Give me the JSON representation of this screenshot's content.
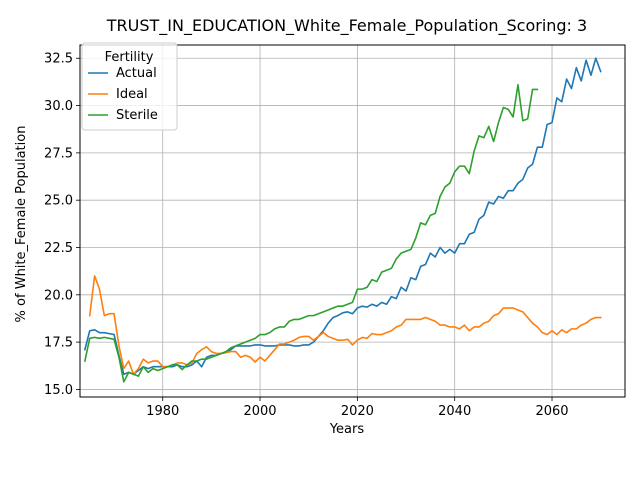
{
  "chart_data": {
    "type": "line",
    "title": "TRUST_IN_EDUCATION_White_Female_Population_Scoring: 3",
    "xlabel": "Years",
    "ylabel": "% of White_Female Population",
    "xlim": [
      1963,
      2075
    ],
    "ylim": [
      14.6,
      33.2
    ],
    "xticks": [
      1960,
      1980,
      2000,
      2020,
      2040,
      2060
    ],
    "yticks": [
      15.0,
      17.5,
      20.0,
      22.5,
      25.0,
      27.5,
      30.0,
      32.5
    ],
    "xtick_labels": [
      "1960",
      "1980",
      "2000",
      "2020",
      "2040",
      "2060"
    ],
    "ytick_labels": [
      "15.0",
      "17.5",
      "20.0",
      "22.5",
      "25.0",
      "27.5",
      "30.0",
      "32.5"
    ],
    "grid": true,
    "legend": {
      "title": "Fertility",
      "position": "top-left"
    },
    "series": [
      {
        "name": "Actual",
        "color": "#1f77b4",
        "x": [
          1964,
          1965,
          1966,
          1967,
          1968,
          1969,
          1970,
          1971,
          1972,
          1973,
          1974,
          1975,
          1976,
          1977,
          1978,
          1979,
          1980,
          1981,
          1982,
          1983,
          1984,
          1985,
          1986,
          1987,
          1988,
          1989,
          1990,
          1991,
          1992,
          1993,
          1994,
          1995,
          1996,
          1997,
          1998,
          1999,
          2000,
          2001,
          2002,
          2003,
          2004,
          2005,
          2006,
          2007,
          2008,
          2009,
          2010,
          2011,
          2012,
          2013,
          2014,
          2015,
          2016,
          2017,
          2018,
          2019,
          2020,
          2021,
          2022,
          2023,
          2024,
          2025,
          2026,
          2027,
          2028,
          2029,
          2030,
          2031,
          2032,
          2033,
          2034,
          2035,
          2036,
          2037,
          2038,
          2039,
          2040,
          2041,
          2042,
          2043,
          2044,
          2045,
          2046,
          2047,
          2048,
          2049,
          2050,
          2051,
          2052,
          2053,
          2054,
          2055,
          2056,
          2057,
          2058,
          2059,
          2060,
          2061,
          2062,
          2063,
          2064,
          2065,
          2066,
          2067,
          2068,
          2069,
          2070
        ],
        "y": [
          17.1,
          18.1,
          18.15,
          18.0,
          18.0,
          17.95,
          17.9,
          16.8,
          15.8,
          15.9,
          15.8,
          16.0,
          16.2,
          16.1,
          16.2,
          16.2,
          16.2,
          16.2,
          16.2,
          16.3,
          16.2,
          16.2,
          16.3,
          16.5,
          16.2,
          16.7,
          16.8,
          16.8,
          16.9,
          16.95,
          17.1,
          17.3,
          17.3,
          17.3,
          17.3,
          17.35,
          17.35,
          17.3,
          17.3,
          17.3,
          17.35,
          17.35,
          17.35,
          17.3,
          17.3,
          17.35,
          17.35,
          17.5,
          17.8,
          18.1,
          18.5,
          18.8,
          18.9,
          19.05,
          19.1,
          19.0,
          19.3,
          19.4,
          19.35,
          19.5,
          19.4,
          19.6,
          19.5,
          19.9,
          19.8,
          20.4,
          20.2,
          20.9,
          20.8,
          21.5,
          21.6,
          22.2,
          22.0,
          22.5,
          22.2,
          22.4,
          22.2,
          22.7,
          22.7,
          23.2,
          23.3,
          24.0,
          24.2,
          24.9,
          24.8,
          25.2,
          25.1,
          25.5,
          25.5,
          25.9,
          26.1,
          26.7,
          26.9,
          27.8,
          27.8,
          29.0,
          29.1,
          30.4,
          30.2,
          31.4,
          30.9,
          32.0,
          31.3,
          32.4,
          31.6,
          32.5,
          31.8
        ]
      },
      {
        "name": "Ideal",
        "color": "#ff7f0e",
        "x": [
          1965,
          1966,
          1967,
          1968,
          1969,
          1970,
          1971,
          1972,
          1973,
          1974,
          1975,
          1976,
          1977,
          1978,
          1979,
          1980,
          1981,
          1982,
          1983,
          1984,
          1985,
          1986,
          1987,
          1988,
          1989,
          1990,
          1991,
          1992,
          1993,
          1994,
          1995,
          1996,
          1997,
          1998,
          1999,
          2000,
          2001,
          2002,
          2003,
          2004,
          2005,
          2006,
          2007,
          2008,
          2009,
          2010,
          2011,
          2012,
          2013,
          2014,
          2015,
          2016,
          2017,
          2018,
          2019,
          2020,
          2021,
          2022,
          2023,
          2024,
          2025,
          2026,
          2027,
          2028,
          2029,
          2030,
          2031,
          2032,
          2033,
          2034,
          2035,
          2036,
          2037,
          2038,
          2039,
          2040,
          2041,
          2042,
          2043,
          2044,
          2045,
          2046,
          2047,
          2048,
          2049,
          2050,
          2051,
          2052,
          2053,
          2054,
          2055,
          2056,
          2057,
          2058,
          2059,
          2060,
          2061,
          2062,
          2063,
          2064,
          2065,
          2066,
          2067,
          2068,
          2069,
          2070
        ],
        "y": [
          18.9,
          21.0,
          20.3,
          18.9,
          19.0,
          19.0,
          17.3,
          16.1,
          16.5,
          15.8,
          16.1,
          16.6,
          16.4,
          16.5,
          16.5,
          16.2,
          16.2,
          16.3,
          16.4,
          16.4,
          16.3,
          16.4,
          16.9,
          17.1,
          17.25,
          17.0,
          16.9,
          16.9,
          16.95,
          17.0,
          17.0,
          16.7,
          16.8,
          16.7,
          16.45,
          16.7,
          16.5,
          16.8,
          17.1,
          17.4,
          17.4,
          17.5,
          17.6,
          17.75,
          17.8,
          17.8,
          17.6,
          17.8,
          18.0,
          17.8,
          17.7,
          17.6,
          17.6,
          17.65,
          17.35,
          17.6,
          17.75,
          17.7,
          17.95,
          17.9,
          17.9,
          18.0,
          18.1,
          18.3,
          18.4,
          18.7,
          18.7,
          18.7,
          18.7,
          18.8,
          18.7,
          18.6,
          18.4,
          18.4,
          18.3,
          18.3,
          18.2,
          18.4,
          18.1,
          18.3,
          18.3,
          18.5,
          18.6,
          18.9,
          19.0,
          19.3,
          19.3,
          19.3,
          19.2,
          19.1,
          18.8,
          18.5,
          18.3,
          18.0,
          17.9,
          18.1,
          17.9,
          18.15,
          18.0,
          18.2,
          18.2,
          18.4,
          18.5,
          18.7,
          18.8,
          18.8
        ]
      },
      {
        "name": "Sterile",
        "color": "#2ca02c",
        "x": [
          1964,
          1965,
          1966,
          1967,
          1968,
          1969,
          1970,
          1971,
          1972,
          1973,
          1974,
          1975,
          1976,
          1977,
          1978,
          1979,
          1980,
          1981,
          1982,
          1983,
          1984,
          1985,
          1986,
          1987,
          1988,
          1989,
          1990,
          1991,
          1992,
          1993,
          1994,
          1995,
          1996,
          1997,
          1998,
          1999,
          2000,
          2001,
          2002,
          2003,
          2004,
          2005,
          2006,
          2007,
          2008,
          2009,
          2010,
          2011,
          2012,
          2013,
          2014,
          2015,
          2016,
          2017,
          2018,
          2019,
          2020,
          2021,
          2022,
          2023,
          2024,
          2025,
          2026,
          2027,
          2028,
          2029,
          2030,
          2031,
          2032,
          2033,
          2034,
          2035,
          2036,
          2037,
          2038,
          2039,
          2040,
          2041,
          2042,
          2043,
          2044,
          2045,
          2046,
          2047,
          2048,
          2049,
          2050,
          2051,
          2052,
          2053,
          2054,
          2055,
          2056,
          2057
        ],
        "y": [
          16.5,
          17.7,
          17.75,
          17.7,
          17.75,
          17.7,
          17.65,
          16.7,
          15.4,
          15.9,
          15.8,
          15.7,
          16.2,
          15.9,
          16.1,
          16.0,
          16.1,
          16.2,
          16.3,
          16.3,
          16.05,
          16.3,
          16.5,
          16.5,
          16.6,
          16.6,
          16.7,
          16.8,
          16.9,
          17.0,
          17.2,
          17.3,
          17.4,
          17.5,
          17.6,
          17.7,
          17.9,
          17.9,
          18.0,
          18.2,
          18.3,
          18.3,
          18.6,
          18.7,
          18.7,
          18.8,
          18.9,
          18.9,
          19.0,
          19.1,
          19.2,
          19.3,
          19.4,
          19.4,
          19.5,
          19.6,
          20.3,
          20.3,
          20.4,
          20.8,
          20.7,
          21.2,
          21.3,
          21.4,
          21.9,
          22.2,
          22.3,
          22.4,
          23.0,
          23.8,
          23.7,
          24.2,
          24.3,
          25.2,
          25.7,
          25.9,
          26.5,
          26.8,
          26.8,
          26.4,
          27.6,
          28.4,
          28.3,
          28.9,
          28.1,
          29.1,
          29.9,
          29.8,
          29.4,
          31.1,
          29.2,
          29.3,
          30.85,
          30.85
        ]
      }
    ]
  }
}
